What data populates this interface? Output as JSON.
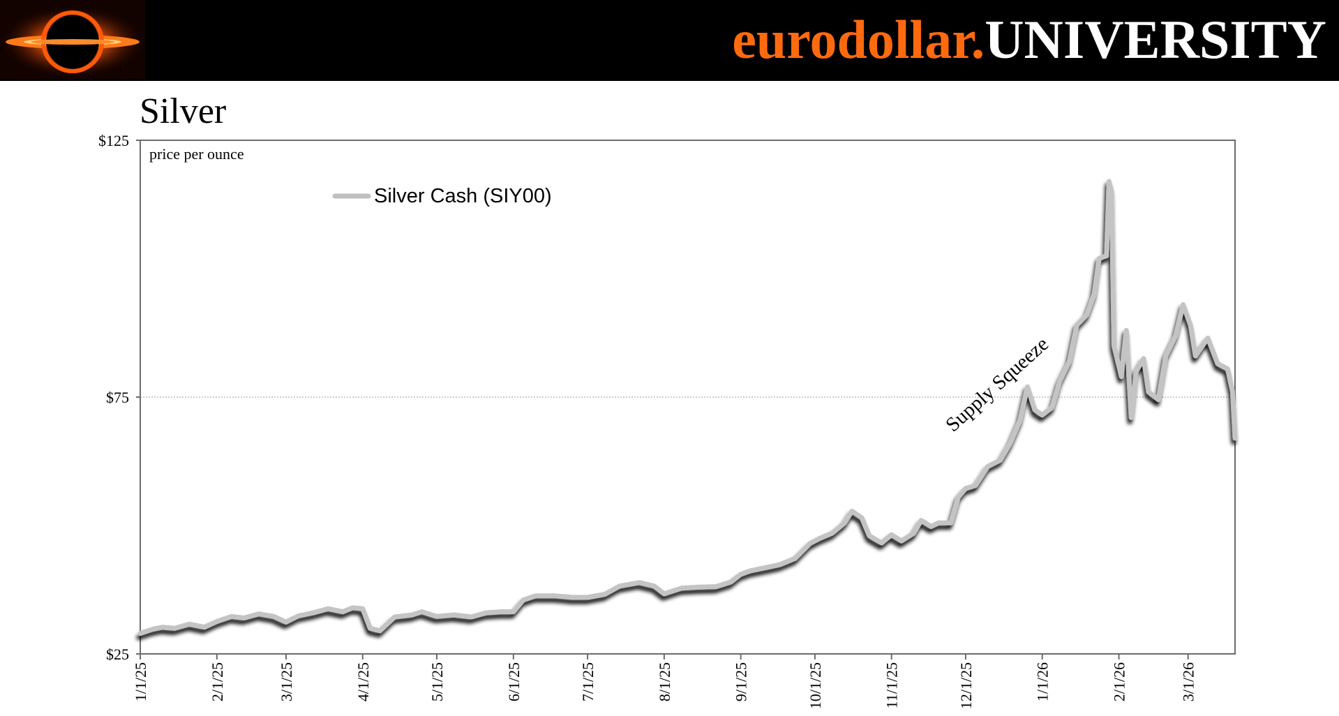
{
  "header": {
    "brand_part1": "eurodollar.",
    "brand_part2": "UNIVERSITY",
    "brand_color": "#ff6a0f"
  },
  "logo": {
    "icon": "black-hole-logo"
  },
  "page_title": "Silver",
  "chart_data": {
    "type": "line",
    "title": "Silver",
    "subtitle": "price per ounce",
    "xlabel": "",
    "ylabel": "",
    "ylim": [
      25,
      125
    ],
    "y_ticks": [
      25,
      75,
      125
    ],
    "y_tick_labels": [
      "$25",
      "$75",
      "$125"
    ],
    "x_range": [
      "2025-01-01",
      "2026-03-20"
    ],
    "x_ticks": [
      "1/1/25",
      "2/1/25",
      "3/1/25",
      "4/1/25",
      "5/1/25",
      "6/1/25",
      "7/1/25",
      "8/1/25",
      "9/1/25",
      "10/1/25",
      "11/1/25",
      "12/1/25",
      "1/1/26",
      "2/1/26",
      "3/1/26"
    ],
    "x_tick_dates": [
      "2025-01-01",
      "2025-02-01",
      "2025-03-01",
      "2025-04-01",
      "2025-05-01",
      "2025-06-01",
      "2025-07-01",
      "2025-08-01",
      "2025-09-01",
      "2025-10-01",
      "2025-11-01",
      "2025-12-01",
      "2026-01-01",
      "2026-02-01",
      "2026-03-01"
    ],
    "grid": "horizontal line at $75 only",
    "legend_placement": "top-left",
    "annotation": "Supply Squeeze",
    "series": [
      {
        "name": "Silver Cash (SIY00)",
        "color": "#bfbfbf",
        "points": [
          [
            "2025-01-01",
            29.0
          ],
          [
            "2025-01-06",
            29.8
          ],
          [
            "2025-01-10",
            30.2
          ],
          [
            "2025-01-15",
            30.0
          ],
          [
            "2025-01-21",
            30.8
          ],
          [
            "2025-01-27",
            30.2
          ],
          [
            "2025-02-01",
            31.3
          ],
          [
            "2025-02-07",
            32.3
          ],
          [
            "2025-02-12",
            32.0
          ],
          [
            "2025-02-18",
            32.8
          ],
          [
            "2025-02-24",
            32.3
          ],
          [
            "2025-03-01",
            31.2
          ],
          [
            "2025-03-06",
            32.4
          ],
          [
            "2025-03-12",
            33.0
          ],
          [
            "2025-03-18",
            33.8
          ],
          [
            "2025-03-24",
            33.2
          ],
          [
            "2025-03-28",
            34.0
          ],
          [
            "2025-04-01",
            33.8
          ],
          [
            "2025-04-04",
            30.0
          ],
          [
            "2025-04-08",
            29.5
          ],
          [
            "2025-04-14",
            32.2
          ],
          [
            "2025-04-21",
            32.6
          ],
          [
            "2025-04-25",
            33.2
          ],
          [
            "2025-05-01",
            32.3
          ],
          [
            "2025-05-08",
            32.6
          ],
          [
            "2025-05-15",
            32.2
          ],
          [
            "2025-05-21",
            33.0
          ],
          [
            "2025-05-27",
            33.2
          ],
          [
            "2025-06-01",
            33.2
          ],
          [
            "2025-06-05",
            35.5
          ],
          [
            "2025-06-10",
            36.3
          ],
          [
            "2025-06-18",
            36.3
          ],
          [
            "2025-06-25",
            36.0
          ],
          [
            "2025-07-01",
            36.0
          ],
          [
            "2025-07-08",
            36.6
          ],
          [
            "2025-07-14",
            38.2
          ],
          [
            "2025-07-22",
            38.9
          ],
          [
            "2025-07-28",
            38.2
          ],
          [
            "2025-08-01",
            36.7
          ],
          [
            "2025-08-08",
            37.8
          ],
          [
            "2025-08-15",
            38.0
          ],
          [
            "2025-08-22",
            38.1
          ],
          [
            "2025-08-28",
            39.0
          ],
          [
            "2025-09-01",
            40.5
          ],
          [
            "2025-09-05",
            41.2
          ],
          [
            "2025-09-11",
            41.8
          ],
          [
            "2025-09-17",
            42.4
          ],
          [
            "2025-09-23",
            43.6
          ],
          [
            "2025-09-29",
            46.5
          ],
          [
            "2025-10-03",
            47.5
          ],
          [
            "2025-10-08",
            48.5
          ],
          [
            "2025-10-13",
            50.5
          ],
          [
            "2025-10-16",
            52.8
          ],
          [
            "2025-10-20",
            51.5
          ],
          [
            "2025-10-23",
            48.0
          ],
          [
            "2025-10-28",
            46.6
          ],
          [
            "2025-11-01",
            48.2
          ],
          [
            "2025-11-05",
            47.0
          ],
          [
            "2025-11-10",
            48.5
          ],
          [
            "2025-11-13",
            51.0
          ],
          [
            "2025-11-17",
            49.8
          ],
          [
            "2025-11-20",
            50.5
          ],
          [
            "2025-11-25",
            50.5
          ],
          [
            "2025-11-28",
            55.5
          ],
          [
            "2025-12-01",
            57.2
          ],
          [
            "2025-12-05",
            57.8
          ],
          [
            "2025-12-10",
            61.5
          ],
          [
            "2025-12-15",
            62.7
          ],
          [
            "2025-12-19",
            66.0
          ],
          [
            "2025-12-23",
            70.5
          ],
          [
            "2025-12-26",
            77.0
          ],
          [
            "2025-12-29",
            72.5
          ],
          [
            "2026-01-01",
            71.5
          ],
          [
            "2026-01-05",
            73.0
          ],
          [
            "2026-01-08",
            78.0
          ],
          [
            "2026-01-12",
            82.0
          ],
          [
            "2026-01-15",
            89.0
          ],
          [
            "2026-01-19",
            91.0
          ],
          [
            "2026-01-22",
            95.0
          ],
          [
            "2026-01-24",
            102.0
          ],
          [
            "2026-01-27",
            102.5
          ],
          [
            "2026-01-28",
            117.0
          ],
          [
            "2026-01-29",
            115.0
          ],
          [
            "2026-01-30",
            85.0
          ],
          [
            "2026-02-02",
            79.0
          ],
          [
            "2026-02-04",
            88.0
          ],
          [
            "2026-02-06",
            71.0
          ],
          [
            "2026-02-08",
            80.0
          ],
          [
            "2026-02-11",
            82.5
          ],
          [
            "2026-02-13",
            76.0
          ],
          [
            "2026-02-17",
            74.5
          ],
          [
            "2026-02-20",
            83.0
          ],
          [
            "2026-02-24",
            87.0
          ],
          [
            "2026-02-27",
            93.0
          ],
          [
            "2026-03-02",
            89.0
          ],
          [
            "2026-03-04",
            83.0
          ],
          [
            "2026-03-09",
            86.5
          ],
          [
            "2026-03-13",
            81.5
          ],
          [
            "2026-03-17",
            80.5
          ],
          [
            "2026-03-19",
            76.0
          ],
          [
            "2026-03-20",
            67.0
          ]
        ]
      }
    ]
  }
}
